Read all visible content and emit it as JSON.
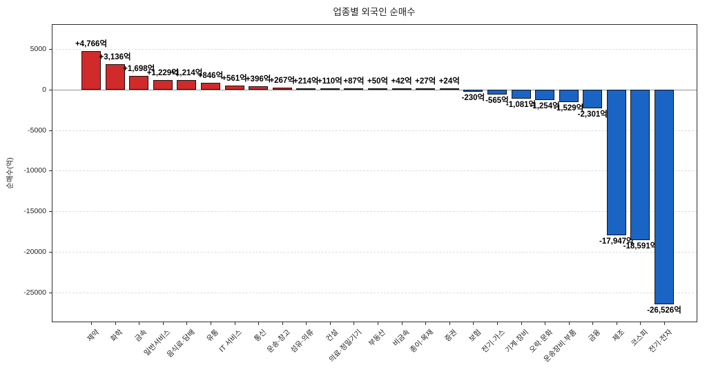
{
  "chart_data": {
    "type": "bar",
    "title": "업종별 외국인 순매수",
    "xlabel": "",
    "ylabel": "순매수(억)",
    "categories": [
      "제약",
      "화학",
      "금속",
      "일반서비스",
      "음식료·담배",
      "유통",
      "IT 서비스",
      "통신",
      "운송·창고",
      "섬유·의류",
      "건설",
      "의료·정밀기기",
      "부동산",
      "비금속",
      "종이·목재",
      "증권",
      "보험",
      "전기·가스",
      "기계·장비",
      "오락·문화",
      "운송장비·부품",
      "금융",
      "제조",
      "코스피",
      "전기·전자"
    ],
    "values": [
      4766,
      3136,
      1698,
      1229,
      1214,
      846,
      561,
      396,
      267,
      214,
      110,
      87,
      50,
      42,
      27,
      24,
      -230,
      -565,
      -1081,
      -1254,
      -1529,
      -2301,
      -17947,
      -18591,
      -26526
    ],
    "bar_labels": [
      "+4,766억",
      "+3,136억",
      "+1,698억",
      "+1,229억",
      "+1,214억",
      "+846억",
      "+561억",
      "+396억",
      "+267억",
      "+214억",
      "+110억",
      "+87억",
      "+50억",
      "+42억",
      "+27억",
      "+24억",
      "-230억",
      "-565억",
      "-1,081억",
      "-1,254억",
      "-1,529억",
      "-2,301억",
      "-17,947억",
      "-18,591억",
      "-26,526억"
    ],
    "yticks": [
      5000,
      0,
      -5000,
      -10000,
      -15000,
      -20000,
      -25000
    ],
    "ylim": [
      -28700,
      8100
    ],
    "grid": "horizontal-dashed",
    "zero_line": true,
    "legend": "none",
    "colors": {
      "positive_bar": "#d02a2a",
      "negative_bar": "#1a64c4",
      "bar_edge": "#141414",
      "grid_line": "#dcdcdc",
      "zero_line": "#909090",
      "axis_border": "#2b2b2b",
      "text": "#1f1f1f"
    }
  }
}
